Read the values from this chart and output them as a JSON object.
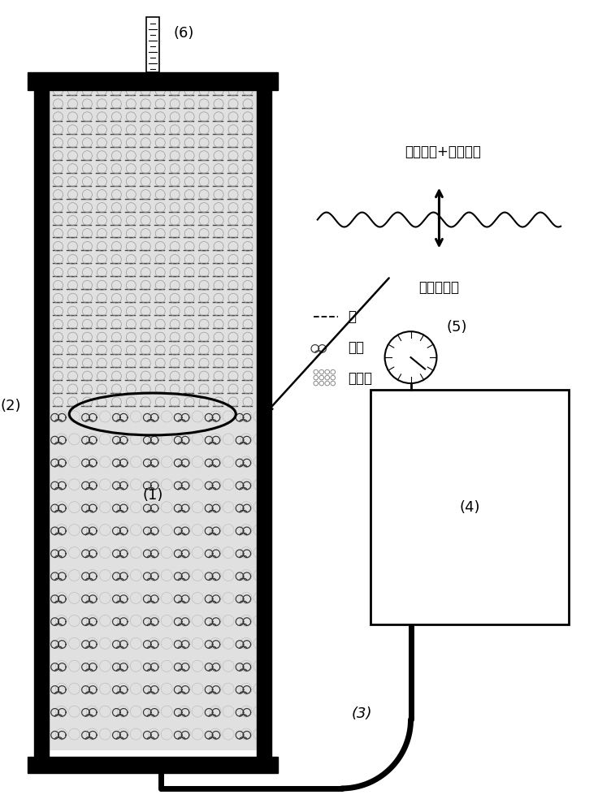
{
  "bg_color": "#ffffff",
  "label_1": "(1)",
  "label_2": "(2)",
  "label_3": "(3)",
  "label_4": "(4)",
  "label_5": "(5)",
  "label_6": "(6)",
  "text_capillary": "沃细管力+静水压力",
  "text_gas_expand": "气体膨胀力",
  "text_water": "水",
  "text_gas": "气体",
  "text_sand": "石英砂"
}
